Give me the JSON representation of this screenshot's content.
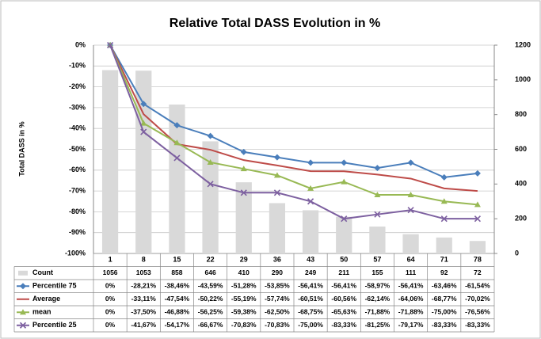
{
  "chart_data": {
    "type": "combo",
    "title": "Relative Total DASS Evolution in %",
    "y_axis_label": "Total DASS in %",
    "categories": [
      "1",
      "8",
      "15",
      "22",
      "29",
      "36",
      "43",
      "50",
      "57",
      "64",
      "71",
      "78"
    ],
    "ylim": [
      -100,
      0
    ],
    "yticks": [
      {
        "value": 0,
        "label": "0%"
      },
      {
        "value": -10,
        "label": "-10%"
      },
      {
        "value": -20,
        "label": "-20%"
      },
      {
        "value": -30,
        "label": "-30%"
      },
      {
        "value": -40,
        "label": "-40%"
      },
      {
        "value": -50,
        "label": "-50%"
      },
      {
        "value": -60,
        "label": "-60%"
      },
      {
        "value": -70,
        "label": "-70%"
      },
      {
        "value": -80,
        "label": "-80%"
      },
      {
        "value": -90,
        "label": "-90%"
      },
      {
        "value": -100,
        "label": "-100%"
      }
    ],
    "y2lim": [
      0,
      1200
    ],
    "y2ticks": [
      0,
      200,
      400,
      600,
      800,
      1000,
      1200
    ],
    "grid": true,
    "series": [
      {
        "name": "Count",
        "type": "bar",
        "axis": "y2",
        "color": "#d9d9d9",
        "values": [
          1056,
          1053,
          858,
          646,
          410,
          290,
          249,
          211,
          155,
          111,
          92,
          72
        ]
      },
      {
        "name": "Percentile 75",
        "type": "line",
        "marker": "diamond",
        "color": "#4a7ebb",
        "values": [
          0,
          -28.21,
          -38.46,
          -43.59,
          -51.28,
          -53.85,
          -56.41,
          -56.41,
          -58.97,
          -56.41,
          -63.46,
          -61.54
        ],
        "value_labels": [
          "0%",
          "-28,21%",
          "-38,46%",
          "-43,59%",
          "-51,28%",
          "-53,85%",
          "-56,41%",
          "-56,41%",
          "-58,97%",
          "-56,41%",
          "-63,46%",
          "-61,54%"
        ]
      },
      {
        "name": "Average",
        "type": "line",
        "color": "#be4b48",
        "values": [
          0,
          -33.11,
          -47.54,
          -50.22,
          -55.19,
          -57.74,
          -60.51,
          -60.56,
          -62.14,
          -64.06,
          -68.77,
          -70.02
        ],
        "value_labels": [
          "0%",
          "-33,11%",
          "-47,54%",
          "-50,22%",
          "-55,19%",
          "-57,74%",
          "-60,51%",
          "-60,56%",
          "-62,14%",
          "-64,06%",
          "-68,77%",
          "-70,02%"
        ]
      },
      {
        "name": "mean",
        "type": "line",
        "marker": "triangle",
        "color": "#98b954",
        "values": [
          0,
          -37.5,
          -46.88,
          -56.25,
          -59.38,
          -62.5,
          -68.75,
          -65.63,
          -71.88,
          -71.88,
          -75,
          -76.56
        ],
        "value_labels": [
          "0%",
          "-37,50%",
          "-46,88%",
          "-56,25%",
          "-59,38%",
          "-62,50%",
          "-68,75%",
          "-65,63%",
          "-71,88%",
          "-71,88%",
          "-75,00%",
          "-76,56%"
        ]
      },
      {
        "name": "Percentile 25",
        "type": "line",
        "marker": "x",
        "color": "#7d60a0",
        "values": [
          0,
          -41.67,
          -54.17,
          -66.67,
          -70.83,
          -70.83,
          -75,
          -83.33,
          -81.25,
          -79.17,
          -83.33,
          -83.33
        ],
        "value_labels": [
          "0%",
          "-41,67%",
          "-54,17%",
          "-66,67%",
          "-70,83%",
          "-70,83%",
          "-75,00%",
          "-83,33%",
          "-81,25%",
          "-79,17%",
          "-83,33%",
          "-83,33%"
        ]
      }
    ]
  }
}
